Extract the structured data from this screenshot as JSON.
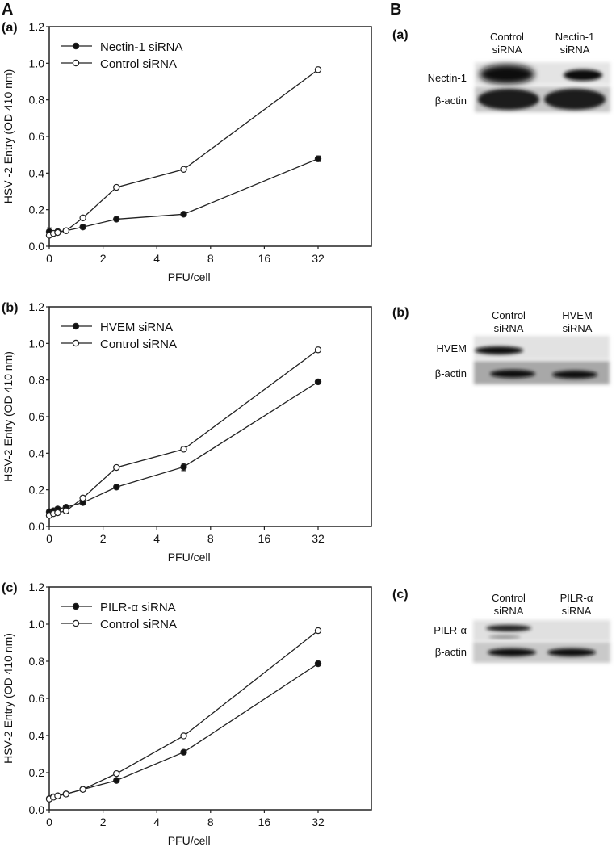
{
  "panel_letters": {
    "A": "A",
    "B": "B"
  },
  "chart_data": [
    {
      "type": "line",
      "panel": "(a)",
      "xlabel": "PFU/cell",
      "ylabel": "HSV -2 Entry (OD 410 nm)",
      "x_ticks": [
        0,
        2,
        4,
        8,
        16,
        32
      ],
      "x_tick_labels": [
        "0",
        "2",
        "4",
        "8",
        "16",
        "32"
      ],
      "y_ticks": [
        "0.0",
        "0.2",
        "0.4",
        "0.6",
        "0.8",
        "1.0",
        "1.2"
      ],
      "ylim": [
        0,
        1.2
      ],
      "legend_position": "top-left",
      "x": [
        0,
        0.156,
        0.3125,
        0.625,
        1.25,
        2.5,
        6,
        32
      ],
      "series": [
        {
          "name": "Nectin-1 siRNA",
          "marker": "filled",
          "values": [
            0.08,
            0.07,
            0.08,
            0.085,
            0.105,
            0.148,
            0.175,
            0.478
          ],
          "errors": [
            0.02,
            0.005,
            0.005,
            0.005,
            0.005,
            0.01,
            0.005,
            0.015
          ]
        },
        {
          "name": "Control siRNA",
          "marker": "open",
          "values": [
            0.06,
            0.07,
            0.075,
            0.085,
            0.155,
            0.322,
            0.42,
            0.965
          ],
          "errors": [
            0.005,
            0.005,
            0.005,
            0.005,
            0.005,
            0.005,
            0.005,
            0.005
          ]
        }
      ]
    },
    {
      "type": "line",
      "panel": "(b)",
      "xlabel": "PFU/cell",
      "ylabel": "HSV-2 Entry (OD 410 nm)",
      "x_ticks": [
        0,
        2,
        4,
        8,
        16,
        32
      ],
      "x_tick_labels": [
        "0",
        "2",
        "4",
        "8",
        "16",
        "32"
      ],
      "y_ticks": [
        "0.0",
        "0.2",
        "0.4",
        "0.6",
        "0.8",
        "1.0",
        "1.2"
      ],
      "ylim": [
        0,
        1.2
      ],
      "legend_position": "top-left",
      "x": [
        0,
        0.156,
        0.3125,
        0.625,
        1.25,
        2.5,
        6,
        32
      ],
      "series": [
        {
          "name": "HVEM siRNA",
          "marker": "filled",
          "values": [
            0.08,
            0.085,
            0.095,
            0.105,
            0.13,
            0.215,
            0.325,
            0.79
          ],
          "errors": [
            0.005,
            0.005,
            0.005,
            0.008,
            0.008,
            0.005,
            0.02,
            0.005
          ]
        },
        {
          "name": "Control siRNA",
          "marker": "open",
          "values": [
            0.06,
            0.07,
            0.075,
            0.085,
            0.155,
            0.322,
            0.422,
            0.965
          ],
          "errors": [
            0.005,
            0.005,
            0.008,
            0.012,
            0.005,
            0.005,
            0.005,
            0.005
          ]
        }
      ]
    },
    {
      "type": "line",
      "panel": "(c)",
      "xlabel": "PFU/cell",
      "ylabel": "HSV-2 Entry (OD 410 nm)",
      "x_ticks": [
        0,
        2,
        4,
        8,
        16,
        32
      ],
      "x_tick_labels": [
        "0",
        "2",
        "4",
        "8",
        "16",
        "32"
      ],
      "y_ticks": [
        "0.0",
        "0.2",
        "0.4",
        "0.6",
        "0.8",
        "1.0",
        "1.2"
      ],
      "ylim": [
        0,
        1.2
      ],
      "legend_position": "top-left",
      "x": [
        0,
        0.156,
        0.3125,
        0.625,
        1.25,
        2.5,
        6,
        32
      ],
      "series": [
        {
          "name": "PILR-α siRNA",
          "marker": "filled",
          "values": [
            0.06,
            0.07,
            0.075,
            0.085,
            0.11,
            0.158,
            0.31,
            0.787
          ],
          "errors": [
            0.005,
            0.005,
            0.005,
            0.005,
            0.005,
            0.005,
            0.005,
            0.005
          ]
        },
        {
          "name": "Control siRNA",
          "marker": "open",
          "values": [
            0.058,
            0.068,
            0.075,
            0.085,
            0.11,
            0.195,
            0.398,
            0.965
          ],
          "errors": [
            0.005,
            0.005,
            0.005,
            0.01,
            0.005,
            0.005,
            0.005,
            0.005
          ]
        }
      ]
    }
  ],
  "blots": [
    {
      "panel": "(a)",
      "lanes": [
        [
          "Control",
          "siRNA"
        ],
        [
          "Nectin-1",
          "siRNA"
        ]
      ],
      "rows": [
        "Nectin-1",
        "β-actin"
      ]
    },
    {
      "panel": "(b)",
      "lanes": [
        [
          "Control",
          "siRNA"
        ],
        [
          "HVEM",
          "siRNA"
        ]
      ],
      "rows": [
        "HVEM",
        "β-actin"
      ]
    },
    {
      "panel": "(c)",
      "lanes": [
        [
          "Control",
          "siRNA"
        ],
        [
          "PILR-α",
          "siRNA"
        ]
      ],
      "rows": [
        "PILR-α",
        "β-actin"
      ]
    }
  ]
}
